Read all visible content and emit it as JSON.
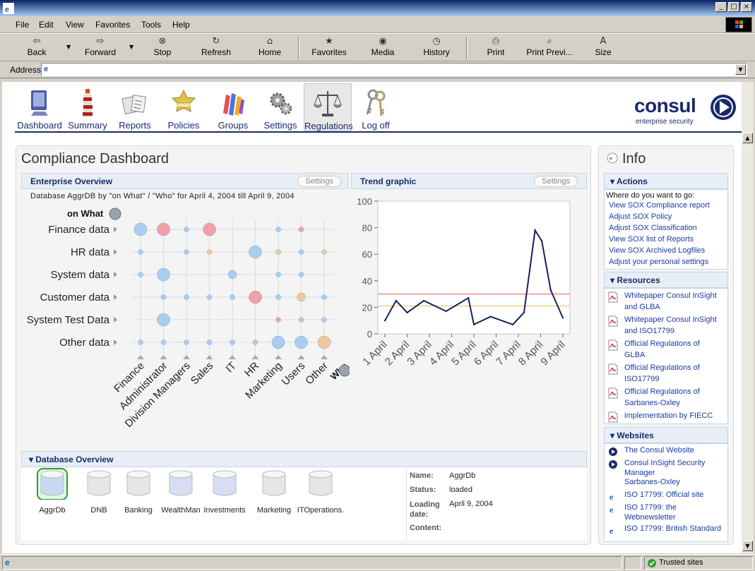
{
  "browser": {
    "menu": [
      "File",
      "Edit",
      "View",
      "Favorites",
      "Tools",
      "Help"
    ],
    "toolbar": {
      "back": "Back",
      "forward": "Forward",
      "stop": "Stop",
      "refresh": "Refresh",
      "home": "Home",
      "favorites": "Favorites",
      "media": "Media",
      "history": "History",
      "print": "Print",
      "print_preview": "Print Previ...",
      "size": "Size"
    },
    "address_label": "Address",
    "address_value": "",
    "status_zone": "Trusted sites"
  },
  "nav": {
    "items": [
      "Dashboard",
      "Summary",
      "Reports",
      "Policies",
      "Groups",
      "Settings",
      "Regulations",
      "Log off"
    ],
    "active": "Regulations"
  },
  "logo": {
    "name": "consul",
    "tagline": "enterprise security"
  },
  "dashboard": {
    "title": "Compliance Dashboard",
    "enterprise": {
      "title": "Enterprise Overview",
      "settings": "Settings",
      "subtitle": "Database AggrDB by \"on What\" / \"Who\" for April 4, 2004 till April 9, 2004",
      "y_axis_title": "on What",
      "x_axis_title": "Who"
    },
    "trend": {
      "title": "Trend graphic",
      "settings": "Settings"
    },
    "db_overview": {
      "title": "Database Overview",
      "databases": [
        "AggrDb",
        "DNB",
        "Banking",
        "WealthMan",
        "Investments",
        "Marketing",
        "ITOperations."
      ],
      "selected": "AggrDb",
      "details": {
        "name_label": "Name:",
        "name": "AggrDb",
        "status_label": "Status:",
        "status": "loaded",
        "loading_label": "Loading date:",
        "loading": "April 9, 2004",
        "content_label": "Content:",
        "content": ""
      }
    }
  },
  "info": {
    "title": "Info",
    "actions": {
      "title": "Actions",
      "prompt": "Where do you want to go:",
      "links": [
        "View SOX Compliance report",
        "Adjust SOX Policy",
        "Adjust SOX Classification",
        "View SOX list of Reports",
        "View SOX Archived Logfiles",
        "Adjust your personal settings"
      ]
    },
    "resources": {
      "title": "Resources",
      "links": [
        [
          "Whitepaper Consul InSight",
          "and GLBA"
        ],
        [
          "Whitepaper Consul InSight",
          "and ISO17799"
        ],
        [
          "Official Regulations of",
          "GLBA"
        ],
        [
          "Official Regulations of",
          "ISO17799"
        ],
        [
          "Official Regulations of",
          "Sarbanes-Oxley"
        ],
        [
          "implementation by FIECC"
        ]
      ]
    },
    "websites": {
      "title": "Websites",
      "links": [
        [
          "The Consul Website"
        ],
        [
          "Consul InSight Security",
          "Manager"
        ],
        [
          "Sarbanes-Oxley"
        ],
        [
          "ISO 17799: Official site"
        ],
        [
          "ISO 17799: the",
          "Webnewsletter"
        ],
        [
          "ISO 17799: British Standard"
        ]
      ]
    }
  },
  "chart_data": [
    {
      "type": "scatter",
      "title": "Enterprise Overview",
      "xlabel": "Who",
      "ylabel": "on What",
      "x_categories": [
        "Finance",
        "Administrator",
        "Division Managers",
        "Sales",
        "IT",
        "HR",
        "Marketing",
        "Users",
        "Other"
      ],
      "y_categories": [
        "Finance data",
        "HR data",
        "System data",
        "Customer data",
        "System Test Data",
        "Other data"
      ],
      "bubbles": [
        {
          "x": "Finance",
          "y": "Finance data",
          "size": 3,
          "color": "blue"
        },
        {
          "x": "Administrator",
          "y": "Finance data",
          "size": 3,
          "color": "red"
        },
        {
          "x": "Division Managers",
          "y": "Finance data",
          "size": 1,
          "color": "blue"
        },
        {
          "x": "Sales",
          "y": "Finance data",
          "size": 3,
          "color": "red"
        },
        {
          "x": "Marketing",
          "y": "Finance data",
          "size": 1,
          "color": "blue"
        },
        {
          "x": "Users",
          "y": "Finance data",
          "size": 1,
          "color": "red"
        },
        {
          "x": "Finance",
          "y": "HR data",
          "size": 1,
          "color": "blue"
        },
        {
          "x": "Division Managers",
          "y": "HR data",
          "size": 1,
          "color": "blue"
        },
        {
          "x": "Sales",
          "y": "HR data",
          "size": 1,
          "color": "orange"
        },
        {
          "x": "HR",
          "y": "HR data",
          "size": 3,
          "color": "blue"
        },
        {
          "x": "Marketing",
          "y": "HR data",
          "size": 1,
          "color": "orange"
        },
        {
          "x": "Users",
          "y": "HR data",
          "size": 1,
          "color": "blue"
        },
        {
          "x": "Other",
          "y": "HR data",
          "size": 1,
          "color": "orange"
        },
        {
          "x": "Finance",
          "y": "System data",
          "size": 1,
          "color": "blue"
        },
        {
          "x": "Administrator",
          "y": "System data",
          "size": 3,
          "color": "blue"
        },
        {
          "x": "IT",
          "y": "System data",
          "size": 2,
          "color": "blue"
        },
        {
          "x": "Marketing",
          "y": "System data",
          "size": 1,
          "color": "blue"
        },
        {
          "x": "Users",
          "y": "System data",
          "size": 1,
          "color": "blue"
        },
        {
          "x": "Administrator",
          "y": "Customer data",
          "size": 1,
          "color": "blue"
        },
        {
          "x": "Division Managers",
          "y": "Customer data",
          "size": 1,
          "color": "blue"
        },
        {
          "x": "Sales",
          "y": "Customer data",
          "size": 1,
          "color": "blue"
        },
        {
          "x": "IT",
          "y": "Customer data",
          "size": 1,
          "color": "blue"
        },
        {
          "x": "HR",
          "y": "Customer data",
          "size": 3,
          "color": "red"
        },
        {
          "x": "Marketing",
          "y": "Customer data",
          "size": 1,
          "color": "blue"
        },
        {
          "x": "Users",
          "y": "Customer data",
          "size": 2,
          "color": "orange"
        },
        {
          "x": "Other",
          "y": "Customer data",
          "size": 1,
          "color": "blue"
        },
        {
          "x": "Administrator",
          "y": "System Test Data",
          "size": 3,
          "color": "blue"
        },
        {
          "x": "Marketing",
          "y": "System Test Data",
          "size": 1,
          "color": "red"
        },
        {
          "x": "Users",
          "y": "System Test Data",
          "size": 1,
          "color": "blue"
        },
        {
          "x": "Other",
          "y": "System Test Data",
          "size": 1,
          "color": "blue"
        },
        {
          "x": "Finance",
          "y": "Other data",
          "size": 1,
          "color": "blue"
        },
        {
          "x": "Administrator",
          "y": "Other data",
          "size": 1,
          "color": "blue"
        },
        {
          "x": "Division Managers",
          "y": "Other data",
          "size": 1,
          "color": "blue"
        },
        {
          "x": "Sales",
          "y": "Other data",
          "size": 1,
          "color": "blue"
        },
        {
          "x": "IT",
          "y": "Other data",
          "size": 1,
          "color": "blue"
        },
        {
          "x": "HR",
          "y": "Other data",
          "size": 1,
          "color": "blue"
        },
        {
          "x": "Marketing",
          "y": "Other data",
          "size": 3,
          "color": "blue"
        },
        {
          "x": "Users",
          "y": "Other data",
          "size": 3,
          "color": "blue"
        },
        {
          "x": "Other",
          "y": "Other data",
          "size": 3,
          "color": "orange"
        }
      ],
      "colors": {
        "blue": "#a9cdf0",
        "red": "#f2a0a8",
        "orange": "#f0c8a0"
      }
    },
    {
      "type": "line",
      "title": "Trend graphic",
      "x_ticks": [
        "1 April",
        "2 April",
        "3 April",
        "4 April",
        "5 April",
        "6 April",
        "7 April",
        "8 April",
        "9 April"
      ],
      "y_ticks": [
        0,
        20,
        40,
        60,
        80,
        100
      ],
      "ylim": [
        0,
        100
      ],
      "series": [
        {
          "values": [
            10,
            25,
            16,
            25,
            17,
            27,
            7,
            13,
            7,
            16,
            78,
            70,
            33,
            12
          ],
          "x": [
            1,
            1.5,
            2,
            2.75,
            3.75,
            4.75,
            5,
            5.75,
            6.75,
            7.25,
            7.75,
            8.05,
            8.45,
            9
          ]
        }
      ],
      "thresholds": [
        {
          "value": 30,
          "color": "#e06060"
        },
        {
          "value": 21,
          "color": "#e8c060"
        }
      ],
      "line_color": "#1a1f5c"
    }
  ]
}
